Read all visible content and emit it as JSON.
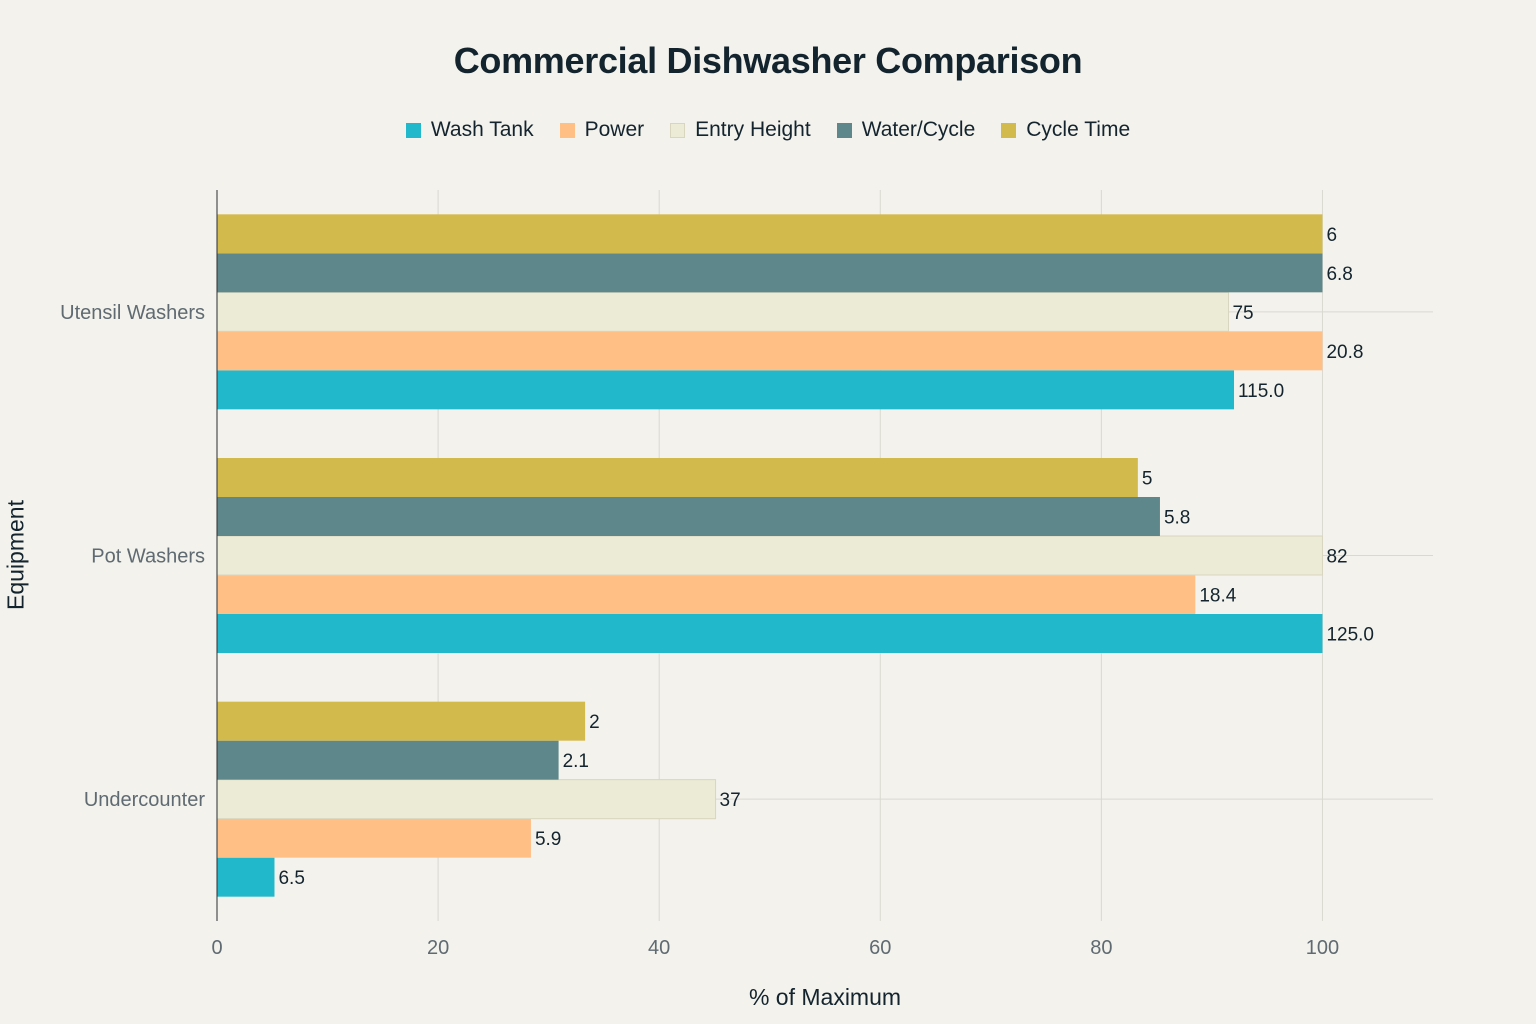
{
  "chart_data": {
    "type": "bar",
    "orientation": "horizontal",
    "title": "Commercial Dishwasher Comparison",
    "xlabel": "% of Maximum",
    "ylabel": "Equipment",
    "xlim": [
      0,
      110
    ],
    "x_ticks": [
      0,
      20,
      40,
      60,
      80,
      100
    ],
    "grid": true,
    "legend_position": "top-center",
    "categories": [
      "Undercounter",
      "Pot Washers",
      "Utensil Washers"
    ],
    "series": [
      {
        "name": "Wash Tank",
        "color": "#21b8cc",
        "values": [
          5.2,
          100,
          92
        ],
        "labels": [
          "6.5",
          "125.0",
          "115.0"
        ]
      },
      {
        "name": "Power",
        "color": "#ffbf85",
        "values": [
          28.4,
          88.5,
          100
        ],
        "labels": [
          "5.9",
          "18.4",
          "20.8"
        ]
      },
      {
        "name": "Entry Height",
        "color": "#ecebd5",
        "values": [
          45.1,
          100,
          91.5
        ],
        "labels": [
          "37",
          "82",
          "75"
        ]
      },
      {
        "name": "Water/Cycle",
        "color": "#5d878b",
        "values": [
          30.9,
          85.3,
          100
        ],
        "labels": [
          "2.1",
          "5.8",
          "6.8"
        ]
      },
      {
        "name": "Cycle Time",
        "color": "#d2ba4c",
        "values": [
          33.3,
          83.3,
          100
        ],
        "labels": [
          "2",
          "5",
          "6"
        ]
      }
    ]
  }
}
